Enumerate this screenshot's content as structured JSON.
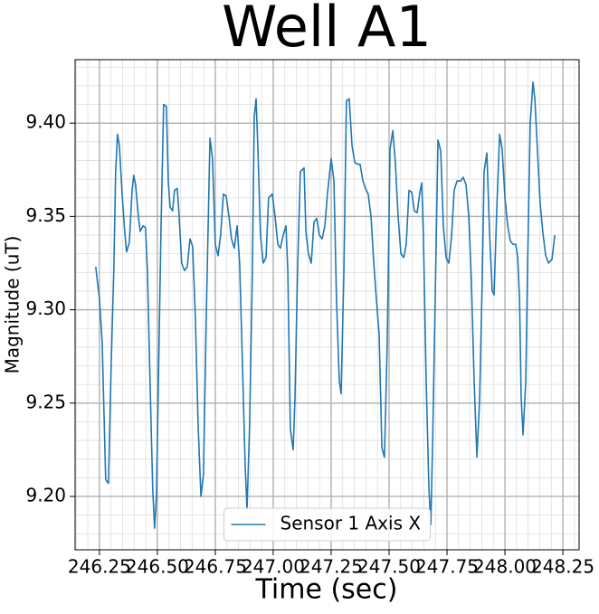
{
  "chart_data": {
    "type": "line",
    "title": "Well A1",
    "xlabel": "Time (sec)",
    "ylabel": "Magnitude (uT)",
    "x": [
      246.234,
      246.25,
      246.262,
      246.277,
      246.289,
      246.301,
      246.312,
      246.32,
      246.328,
      246.336,
      246.348,
      246.359,
      246.367,
      246.379,
      246.391,
      246.398,
      246.406,
      246.418,
      246.426,
      246.438,
      246.449,
      246.457,
      246.469,
      246.48,
      246.488,
      246.496,
      246.504,
      246.516,
      246.527,
      246.539,
      246.547,
      246.555,
      246.566,
      246.574,
      246.586,
      246.594,
      246.605,
      246.617,
      246.629,
      246.641,
      246.652,
      246.664,
      246.676,
      246.688,
      246.699,
      246.711,
      246.727,
      246.738,
      246.75,
      246.762,
      246.773,
      246.785,
      246.797,
      246.809,
      246.82,
      246.832,
      246.844,
      246.855,
      246.867,
      246.879,
      246.887,
      246.898,
      246.91,
      246.918,
      246.926,
      246.934,
      246.945,
      246.957,
      246.969,
      246.98,
      246.996,
      247.008,
      247.02,
      247.031,
      247.043,
      247.055,
      247.063,
      247.074,
      247.086,
      247.094,
      247.105,
      247.117,
      247.133,
      247.141,
      247.152,
      247.164,
      247.176,
      247.188,
      247.199,
      247.211,
      247.223,
      247.234,
      247.25,
      247.262,
      247.273,
      247.285,
      247.293,
      247.305,
      247.316,
      247.328,
      247.34,
      247.352,
      247.363,
      247.375,
      247.387,
      247.398,
      247.41,
      247.422,
      247.434,
      247.445,
      247.457,
      247.469,
      247.48,
      247.492,
      247.504,
      247.516,
      247.527,
      247.539,
      247.551,
      247.563,
      247.574,
      247.586,
      247.598,
      247.609,
      247.621,
      247.633,
      247.641,
      247.648,
      247.66,
      247.672,
      247.68,
      247.688,
      247.699,
      247.711,
      247.723,
      247.734,
      247.746,
      247.758,
      247.77,
      247.781,
      247.793,
      247.809,
      247.82,
      247.832,
      247.844,
      247.855,
      247.867,
      247.879,
      247.891,
      247.902,
      247.91,
      247.922,
      247.934,
      247.945,
      247.953,
      247.965,
      247.977,
      247.988,
      248.0,
      248.012,
      248.023,
      248.035,
      248.047,
      248.055,
      248.063,
      248.07,
      248.078,
      248.09,
      248.098,
      248.109,
      248.121,
      248.129,
      248.141,
      248.152,
      248.164,
      248.176,
      248.188,
      248.203,
      248.215
    ],
    "series": [
      {
        "name": "Sensor 1 Axis X",
        "color": "#1f77b4",
        "values": [
          9.323,
          9.306,
          9.282,
          9.209,
          9.207,
          9.272,
          9.321,
          9.374,
          9.394,
          9.388,
          9.362,
          9.342,
          9.331,
          9.336,
          9.364,
          9.372,
          9.367,
          9.35,
          9.342,
          9.345,
          9.344,
          9.321,
          9.258,
          9.204,
          9.183,
          9.2,
          9.258,
          9.345,
          9.41,
          9.409,
          9.369,
          9.355,
          9.353,
          9.364,
          9.365,
          9.35,
          9.325,
          9.321,
          9.323,
          9.338,
          9.334,
          9.296,
          9.238,
          9.2,
          9.212,
          9.296,
          9.392,
          9.381,
          9.335,
          9.329,
          9.34,
          9.362,
          9.361,
          9.35,
          9.338,
          9.333,
          9.345,
          9.325,
          9.272,
          9.216,
          9.193,
          9.238,
          9.321,
          9.403,
          9.413,
          9.386,
          9.34,
          9.325,
          9.328,
          9.36,
          9.362,
          9.35,
          9.335,
          9.333,
          9.34,
          9.345,
          9.321,
          9.236,
          9.225,
          9.253,
          9.321,
          9.374,
          9.376,
          9.342,
          9.33,
          9.325,
          9.347,
          9.349,
          9.34,
          9.338,
          9.345,
          9.362,
          9.381,
          9.369,
          9.306,
          9.262,
          9.255,
          9.321,
          9.412,
          9.413,
          9.388,
          9.379,
          9.378,
          9.378,
          9.369,
          9.365,
          9.362,
          9.35,
          9.325,
          9.306,
          9.287,
          9.226,
          9.221,
          9.282,
          9.386,
          9.396,
          9.379,
          9.35,
          9.33,
          9.328,
          9.335,
          9.364,
          9.363,
          9.353,
          9.352,
          9.363,
          9.368,
          9.34,
          9.262,
          9.204,
          9.185,
          9.229,
          9.306,
          9.391,
          9.385,
          9.345,
          9.328,
          9.325,
          9.34,
          9.364,
          9.369,
          9.369,
          9.371,
          9.367,
          9.35,
          9.316,
          9.262,
          9.221,
          9.253,
          9.316,
          9.374,
          9.384,
          9.34,
          9.31,
          9.308,
          9.355,
          9.394,
          9.386,
          9.36,
          9.345,
          9.337,
          9.335,
          9.335,
          9.328,
          9.306,
          9.253,
          9.233,
          9.262,
          9.325,
          9.4,
          9.422,
          9.413,
          9.384,
          9.357,
          9.341,
          9.329,
          9.325,
          9.327,
          9.34
        ]
      }
    ],
    "xlim": [
      246.145,
      248.32
    ],
    "ylim": [
      9.1714,
      9.434
    ],
    "xticks": [
      246.25,
      {
        "value": 246.5,
        "label": "246.50"
      },
      246.75,
      {
        "value": 247,
        "label": "247.00"
      },
      247.25,
      {
        "value": 247.5,
        "label": "247.50"
      },
      247.75,
      {
        "value": 248,
        "label": "248.00"
      },
      248.25
    ],
    "yticks": [
      {
        "value": 9.2,
        "label": "9.20"
      },
      9.25,
      {
        "value": 9.3,
        "label": "9.30"
      },
      9.35,
      {
        "value": 9.4,
        "label": "9.40"
      }
    ],
    "grid": true,
    "minor_grid": true,
    "legend": "lower center"
  }
}
